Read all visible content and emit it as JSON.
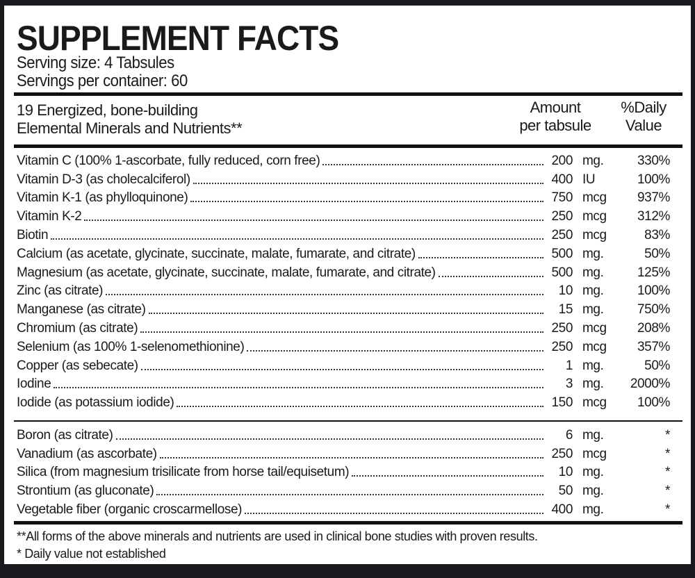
{
  "title": "SUPPLEMENT FACTS",
  "serving_size": "Serving size: 4 Tabsules",
  "servings_per_container": "Servings per container: 60",
  "header": {
    "desc_line1": "19 Energized, bone-building",
    "desc_line2": "Elemental Minerals and Nutrients**",
    "amount_line1": "Amount",
    "amount_line2": "per tabsule",
    "dv_line1": "%Daily",
    "dv_line2": "Value"
  },
  "nutrients": [
    {
      "name": "Vitamin C (100% 1-ascorbate, fully reduced, corn free)",
      "amount": "200",
      "unit": "mg.",
      "dv": "330%"
    },
    {
      "name": "Vitamin D-3 (as cholecalciferol)",
      "amount": "400",
      "unit": "IU",
      "dv": "100%"
    },
    {
      "name": "Vitamin K-1 (as phylloquinone)",
      "amount": "750",
      "unit": "mcg",
      "dv": "937%"
    },
    {
      "name": "Vitamin K-2",
      "amount": "250",
      "unit": "mcg",
      "dv": "312%"
    },
    {
      "name": "Biotin",
      "amount": "250",
      "unit": "mcg",
      "dv": "83%"
    },
    {
      "name": "Calcium (as acetate, glycinate, succinate, malate, fumarate, and citrate)",
      "amount": "500",
      "unit": "mg.",
      "dv": "50%"
    },
    {
      "name": "Magnesium (as acetate, glycinate, succinate, malate, fumarate, and citrate)",
      "amount": "500",
      "unit": "mg.",
      "dv": "125%"
    },
    {
      "name": "Zinc (as citrate)",
      "amount": "10",
      "unit": "mg.",
      "dv": "100%"
    },
    {
      "name": "Manganese (as citrate)",
      "amount": "15",
      "unit": "mg.",
      "dv": "750%"
    },
    {
      "name": "Chromium (as citrate)",
      "amount": "250",
      "unit": "mcg",
      "dv": "208%"
    },
    {
      "name": "Selenium (as 100% 1-selenomethionine)",
      "amount": "250",
      "unit": "mcg",
      "dv": "357%"
    },
    {
      "name": "Copper (as sebecate)",
      "amount": "1",
      "unit": "mg.",
      "dv": "50%"
    },
    {
      "name": "Iodine",
      "amount": "3",
      "unit": "mg.",
      "dv": "2000%"
    },
    {
      "name": "Iodide (as potassium iodide)",
      "amount": "150",
      "unit": "mcg",
      "dv": "100%"
    }
  ],
  "others": [
    {
      "name": "Boron (as citrate)",
      "amount": "6",
      "unit": "mg.",
      "dv": "*"
    },
    {
      "name": "Vanadium (as ascorbate)",
      "amount": "250",
      "unit": "mcg",
      "dv": "*"
    },
    {
      "name": "Silica (from magnesium trisilicate from horse tail/equisetum)",
      "amount": "10",
      "unit": "mg.",
      "dv": "*"
    },
    {
      "name": "Strontium (as gluconate)",
      "amount": "50",
      "unit": "mg.",
      "dv": "*"
    },
    {
      "name": "Vegetable fiber (organic croscarmellose)",
      "amount": "400",
      "unit": "mg.",
      "dv": "*"
    }
  ],
  "footnote1": "**All forms of the above minerals and nutrients are used in clinical bone studies with proven results.",
  "footnote2": "* Daily value not established"
}
